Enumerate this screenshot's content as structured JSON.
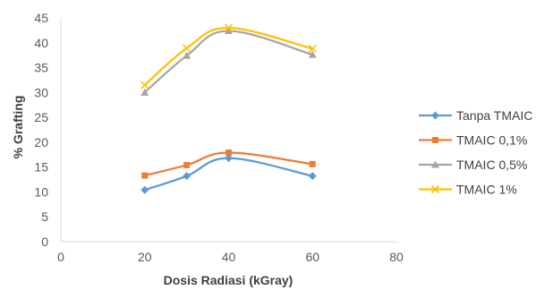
{
  "chart_data": {
    "type": "line",
    "xlabel": "Dosis Radiasi (kGray)",
    "ylabel": "% Grafting",
    "xlim": [
      0,
      80
    ],
    "ylim": [
      0,
      45
    ],
    "x_ticks": [
      "0",
      "20",
      "40",
      "60",
      "80"
    ],
    "y_ticks": [
      "0",
      "5",
      "10",
      "15",
      "20",
      "25",
      "30",
      "35",
      "40",
      "45"
    ],
    "grid": false,
    "legend_position": "right",
    "series": [
      {
        "name": "Tanpa TMAIC",
        "color": "#5b9bd5",
        "marker": "diamond",
        "x": [
          20,
          30,
          40,
          60
        ],
        "y": [
          10.4,
          13.2,
          16.8,
          13.2
        ]
      },
      {
        "name": "TMAIC 0,1%",
        "color": "#ed7d31",
        "marker": "square",
        "x": [
          20,
          30,
          40,
          60
        ],
        "y": [
          13.3,
          15.4,
          17.9,
          15.6
        ]
      },
      {
        "name": "TMAIC 0,5%",
        "color": "#a5a5a5",
        "marker": "triangle",
        "x": [
          20,
          30,
          40,
          60
        ],
        "y": [
          30.0,
          37.4,
          42.4,
          37.6
        ]
      },
      {
        "name": "TMAIC 1%",
        "color": "#ffc000",
        "marker": "x",
        "x": [
          20,
          30,
          40,
          60
        ],
        "y": [
          31.5,
          38.9,
          43.0,
          38.8
        ]
      }
    ]
  }
}
